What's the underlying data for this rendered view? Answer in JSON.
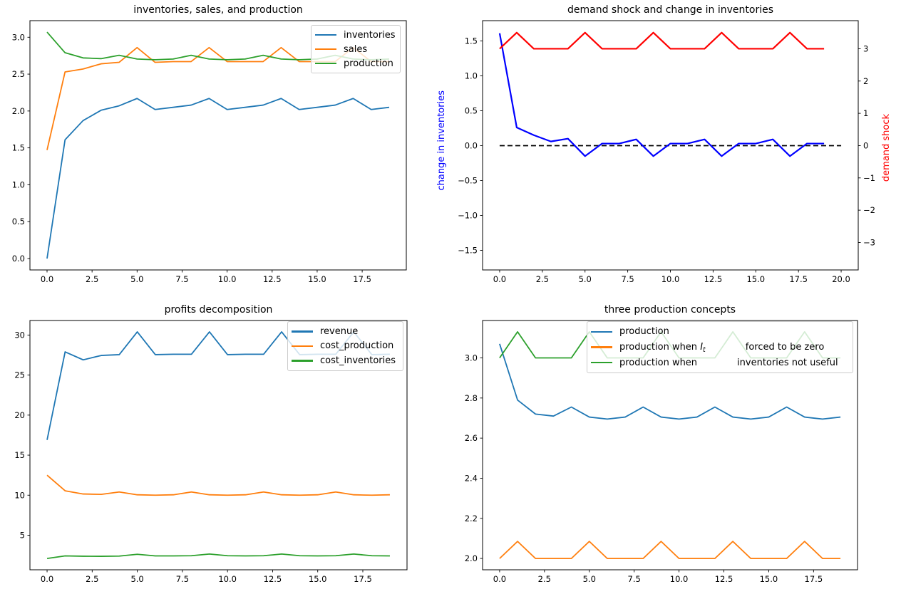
{
  "figure": {
    "background": "#ffffff"
  },
  "chart_data": [
    {
      "id": "inventories-sales-production",
      "type": "line",
      "title": "inventories, sales, and production",
      "xlim": [
        -0.95,
        19.95
      ],
      "ylim": [
        -0.155,
        3.225
      ],
      "grid": false,
      "xticks": {
        "values": [
          0,
          2.5,
          5,
          7.5,
          10,
          12.5,
          15,
          17.5
        ],
        "labels": [
          "0.0",
          "2.5",
          "5.0",
          "7.5",
          "10.0",
          "12.5",
          "15.0",
          "17.5"
        ]
      },
      "yticks": {
        "values": [
          0,
          0.5,
          1,
          1.5,
          2,
          2.5,
          3
        ],
        "labels": [
          "0.0",
          "0.5",
          "1.0",
          "1.5",
          "2.0",
          "2.5",
          "3.0"
        ]
      },
      "legend": {
        "position": "upper right",
        "entries": [
          {
            "color": "#1f77b4",
            "parts": [
              {
                "text": "inventories"
              }
            ]
          },
          {
            "color": "#ff7f0e",
            "parts": [
              {
                "text": "sales"
              }
            ]
          },
          {
            "color": "#2ca02c",
            "parts": [
              {
                "text": "production"
              }
            ]
          }
        ]
      },
      "series": [
        {
          "id": "inventories",
          "color": "#1f77b4",
          "width": 1.8,
          "values": [
            0.0,
            1.61,
            1.87,
            2.01,
            2.07,
            2.17,
            2.02,
            2.05,
            2.08,
            2.17,
            2.02,
            2.05,
            2.08,
            2.17,
            2.02,
            2.05,
            2.08,
            2.17,
            2.02,
            2.05
          ]
        },
        {
          "id": "sales",
          "color": "#ff7f0e",
          "width": 1.8,
          "values": [
            1.47,
            2.53,
            2.57,
            2.64,
            2.66,
            2.86,
            2.66,
            2.67,
            2.67,
            2.86,
            2.67,
            2.67,
            2.67,
            2.86,
            2.67,
            2.67,
            2.67,
            2.86,
            2.67,
            2.67
          ]
        },
        {
          "id": "production",
          "color": "#2ca02c",
          "width": 1.8,
          "values": [
            3.07,
            2.79,
            2.72,
            2.71,
            2.755,
            2.705,
            2.695,
            2.705,
            2.755,
            2.705,
            2.695,
            2.705,
            2.755,
            2.705,
            2.695,
            2.705,
            2.755,
            2.705,
            2.695,
            2.705
          ]
        }
      ]
    },
    {
      "id": "demand-shock-and-change-in-inventories",
      "type": "line",
      "title": "demand shock and change in inventories",
      "ylabel_left": "change in inventories",
      "ylabel_left_color": "#0000ff",
      "ylabel_right": "demand shock",
      "ylabel_right_color": "#ff0000",
      "xlim": [
        -1,
        21
      ],
      "ylim": [
        -1.78,
        1.79
      ],
      "ylim_right": [
        -3.85,
        3.87
      ],
      "grid": false,
      "xticks": {
        "values": [
          0,
          2.5,
          5,
          7.5,
          10,
          12.5,
          15,
          17.5,
          20
        ],
        "labels": [
          "0.0",
          "2.5",
          "5.0",
          "7.5",
          "10.0",
          "12.5",
          "15.0",
          "17.5",
          "20.0"
        ]
      },
      "yticks": {
        "values": [
          1.5,
          1.0,
          0.5,
          0.0,
          -0.5,
          -1.0,
          -1.5
        ],
        "labels": [
          "1.5",
          "1.0",
          "0.5",
          "0.0",
          "−0.5",
          "−1.0",
          "−1.5"
        ]
      },
      "yticks_right": {
        "values": [
          3,
          2,
          1,
          0,
          -1,
          -2,
          -3
        ],
        "labels": [
          "3",
          "2",
          "1",
          "0",
          "−1",
          "−2",
          "−3"
        ]
      },
      "series": [
        {
          "id": "zero-line",
          "color": "#000000",
          "width": 1.8,
          "dash": "7 4",
          "x": [
            0,
            20
          ],
          "values": [
            0,
            0
          ]
        },
        {
          "id": "change-in-inventories",
          "color": "#0000ff",
          "width": 2.2,
          "values": [
            1.61,
            0.26,
            0.15,
            0.06,
            0.1,
            -0.15,
            0.03,
            0.03,
            0.09,
            -0.15,
            0.03,
            0.03,
            0.09,
            -0.15,
            0.03,
            0.03,
            0.09,
            -0.15,
            0.03,
            0.03
          ]
        },
        {
          "id": "demand-shock",
          "color": "#ff0000",
          "width": 2.2,
          "axis": "right",
          "values": [
            3,
            3.5,
            3,
            3,
            3,
            3.5,
            3,
            3,
            3,
            3.5,
            3,
            3,
            3,
            3.5,
            3,
            3,
            3,
            3.5,
            3,
            3
          ]
        }
      ]
    },
    {
      "id": "profits-decomposition",
      "type": "line",
      "title": "profits decomposition",
      "xlim": [
        -0.95,
        19.95
      ],
      "ylim": [
        0.685,
        31.815
      ],
      "grid": false,
      "xticks": {
        "values": [
          0,
          2.5,
          5,
          7.5,
          10,
          12.5,
          15,
          17.5
        ],
        "labels": [
          "0.0",
          "2.5",
          "5.0",
          "7.5",
          "10.0",
          "12.5",
          "15.0",
          "17.5"
        ]
      },
      "yticks": {
        "values": [
          5,
          10,
          15,
          20,
          25,
          30
        ],
        "labels": [
          "5",
          "10",
          "15",
          "20",
          "25",
          "30"
        ]
      },
      "legend": {
        "position": "upper right",
        "entries": [
          {
            "color": "#1f77b4",
            "parts": [
              {
                "text": "revenue"
              }
            ]
          },
          {
            "color": "#ff7f0e",
            "parts": [
              {
                "text": "cost_production"
              }
            ]
          },
          {
            "color": "#2ca02c",
            "parts": [
              {
                "text": "cost_inventories"
              }
            ]
          }
        ]
      },
      "series": [
        {
          "id": "revenue",
          "color": "#1f77b4",
          "width": 1.8,
          "values": [
            16.9,
            27.9,
            26.9,
            27.45,
            27.55,
            30.4,
            27.55,
            27.6,
            27.6,
            30.4,
            27.55,
            27.6,
            27.6,
            30.4,
            27.55,
            27.6,
            27.6,
            30.4,
            27.55,
            27.6
          ]
        },
        {
          "id": "cost-production",
          "color": "#ff7f0e",
          "width": 1.8,
          "values": [
            12.5,
            10.55,
            10.15,
            10.1,
            10.4,
            10.05,
            10.0,
            10.05,
            10.4,
            10.05,
            10.0,
            10.05,
            10.4,
            10.05,
            10.0,
            10.05,
            10.4,
            10.05,
            10.0,
            10.05
          ]
        },
        {
          "id": "cost-inventories",
          "color": "#2ca02c",
          "width": 1.8,
          "values": [
            2.1,
            2.42,
            2.38,
            2.37,
            2.4,
            2.62,
            2.42,
            2.42,
            2.44,
            2.65,
            2.44,
            2.42,
            2.44,
            2.65,
            2.44,
            2.42,
            2.44,
            2.65,
            2.44,
            2.42
          ]
        }
      ]
    },
    {
      "id": "three-production-concepts",
      "type": "line",
      "title": "three production concepts",
      "xlim": [
        -0.95,
        19.95
      ],
      "ylim": [
        1.9435,
        3.1865
      ],
      "grid": false,
      "xticks": {
        "values": [
          0,
          2.5,
          5,
          7.5,
          10,
          12.5,
          15,
          17.5
        ],
        "labels": [
          "0.0",
          "2.5",
          "5.0",
          "7.5",
          "10.0",
          "12.5",
          "15.0",
          "17.5"
        ]
      },
      "yticks": {
        "values": [
          2.0,
          2.2,
          2.4,
          2.6,
          2.8,
          3.0
        ],
        "labels": [
          "2.0",
          "2.2",
          "2.4",
          "2.6",
          "2.8",
          "3.0"
        ]
      },
      "legend": {
        "position": "upper center-right",
        "entries": [
          {
            "color": "#1f77b4",
            "parts": [
              {
                "text": "production"
              }
            ]
          },
          {
            "color": "#ff7f0e",
            "parts": [
              {
                "text": "production when "
              },
              {
                "text": "I",
                "style": "italic"
              },
              {
                "text": "t",
                "style": "sub"
              },
              {
                "style": "gap"
              },
              {
                "text": "forced to be zero"
              }
            ]
          },
          {
            "color": "#2ca02c",
            "parts": [
              {
                "text": "production when"
              },
              {
                "style": "gap"
              },
              {
                "text": "inventories not useful"
              }
            ]
          }
        ]
      },
      "series": [
        {
          "id": "production",
          "color": "#1f77b4",
          "width": 1.8,
          "values": [
            3.07,
            2.79,
            2.72,
            2.71,
            2.755,
            2.705,
            2.695,
            2.705,
            2.755,
            2.705,
            2.695,
            2.705,
            2.755,
            2.705,
            2.695,
            2.705,
            2.755,
            2.705,
            2.695,
            2.705
          ]
        },
        {
          "id": "production-when-it-forced-to-zero",
          "color": "#ff7f0e",
          "width": 1.8,
          "values": [
            2.0,
            2.085,
            2.0,
            2.0,
            2.0,
            2.085,
            2.0,
            2.0,
            2.0,
            2.085,
            2.0,
            2.0,
            2.0,
            2.085,
            2.0,
            2.0,
            2.0,
            2.085,
            2.0,
            2.0
          ]
        },
        {
          "id": "production-when-inventories-not-useful",
          "color": "#2ca02c",
          "width": 1.8,
          "values": [
            3.0,
            3.13,
            3.0,
            3.0,
            3.0,
            3.13,
            3.0,
            3.0,
            3.0,
            3.13,
            3.0,
            3.0,
            3.0,
            3.13,
            3.0,
            3.0,
            3.0,
            3.13,
            3.0,
            3.0
          ]
        }
      ]
    }
  ]
}
